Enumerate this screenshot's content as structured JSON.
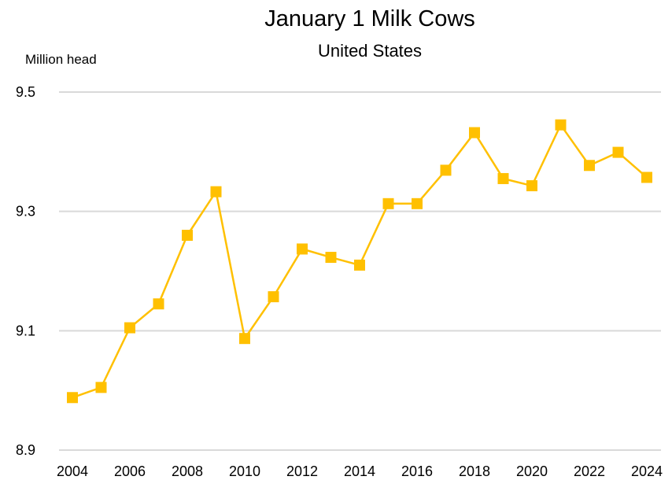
{
  "chart_data": {
    "type": "line",
    "title": "January 1 Milk Cows",
    "subtitle": "United States",
    "ylabel": "Million head",
    "xlabel": "",
    "ylim": [
      8.9,
      9.5
    ],
    "yticks": [
      "9.5",
      "9.3",
      "9.1",
      "8.9"
    ],
    "xticks": [
      "2004",
      "2006",
      "2008",
      "2010",
      "2012",
      "2014",
      "2016",
      "2018",
      "2020",
      "2022",
      "2024"
    ],
    "grid": true,
    "color": "#FFC000",
    "x": [
      2004,
      2005,
      2006,
      2007,
      2008,
      2009,
      2010,
      2011,
      2012,
      2013,
      2014,
      2015,
      2016,
      2017,
      2018,
      2019,
      2020,
      2021,
      2022,
      2023,
      2024
    ],
    "values": [
      8.988,
      9.005,
      9.105,
      9.145,
      9.26,
      9.333,
      9.087,
      9.157,
      9.237,
      9.223,
      9.21,
      9.313,
      9.313,
      9.369,
      9.432,
      9.355,
      9.343,
      9.445,
      9.377,
      9.399,
      9.357
    ]
  }
}
